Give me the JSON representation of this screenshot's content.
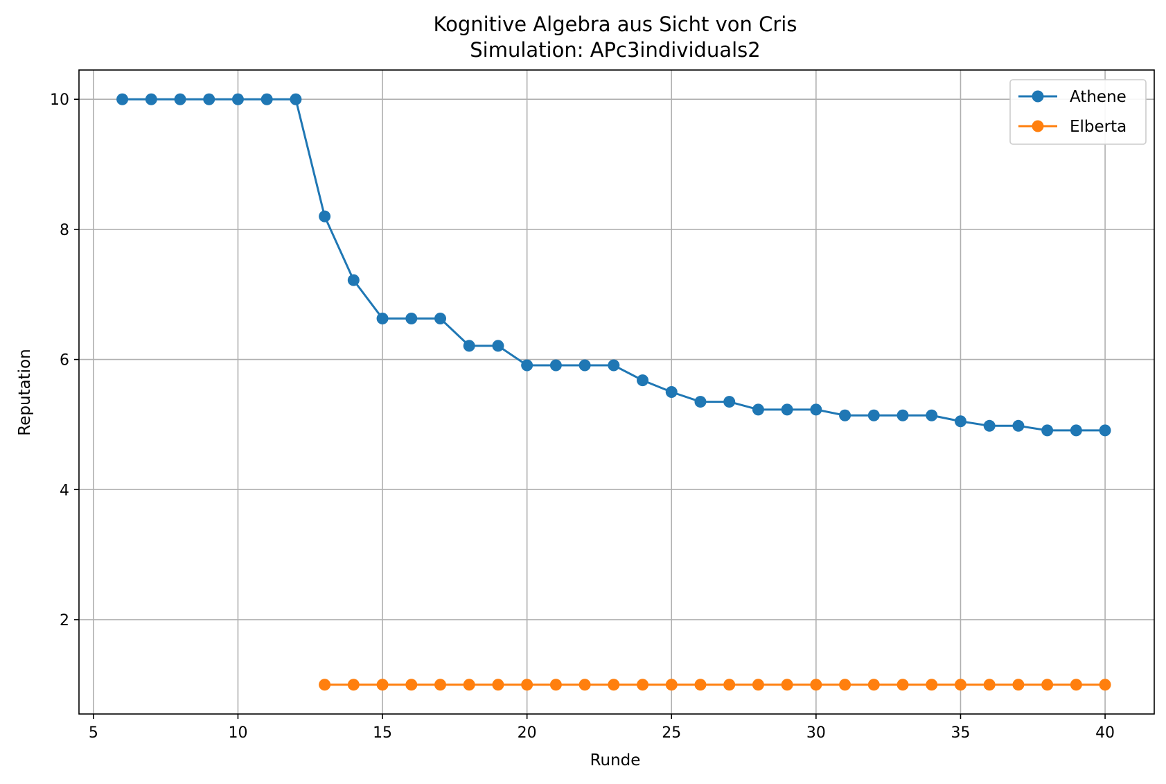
{
  "chart_data": {
    "type": "line",
    "title": "Kognitive Algebra aus Sicht von Cris",
    "subtitle": "Simulation: APc3individuals2",
    "xlabel": "Runde",
    "ylabel": "Reputation",
    "xlim": [
      4.5,
      41.7
    ],
    "ylim": [
      0.55,
      10.45
    ],
    "xticks": [
      5,
      10,
      15,
      20,
      25,
      30,
      35,
      40
    ],
    "yticks": [
      2,
      4,
      6,
      8,
      10
    ],
    "xtick_labels": [
      "5",
      "10",
      "15",
      "20",
      "25",
      "30",
      "35",
      "40"
    ],
    "ytick_labels": [
      "2",
      "4",
      "6",
      "8",
      "10"
    ],
    "grid": true,
    "legend_position": "top-right",
    "series": [
      {
        "name": "Athene",
        "color": "#1f77b4",
        "marker": "circle",
        "x": [
          6,
          7,
          8,
          9,
          10,
          11,
          12,
          13,
          14,
          15,
          16,
          17,
          18,
          19,
          20,
          21,
          22,
          23,
          24,
          25,
          26,
          27,
          28,
          29,
          30,
          31,
          32,
          33,
          34,
          35,
          36,
          37,
          38,
          39,
          40
        ],
        "y": [
          10,
          10,
          10,
          10,
          10,
          10,
          10,
          8.2,
          7.22,
          6.63,
          6.63,
          6.63,
          6.21,
          6.21,
          5.91,
          5.91,
          5.91,
          5.91,
          5.68,
          5.5,
          5.35,
          5.35,
          5.23,
          5.23,
          5.23,
          5.14,
          5.14,
          5.14,
          5.14,
          5.05,
          4.98,
          4.98,
          4.91,
          4.91,
          4.91
        ]
      },
      {
        "name": "Elberta",
        "color": "#ff7f0e",
        "marker": "circle",
        "x": [
          13,
          14,
          15,
          16,
          17,
          18,
          19,
          20,
          21,
          22,
          23,
          24,
          25,
          26,
          27,
          28,
          29,
          30,
          31,
          32,
          33,
          34,
          35,
          36,
          37,
          38,
          39,
          40
        ],
        "y": [
          1,
          1,
          1,
          1,
          1,
          1,
          1,
          1,
          1,
          1,
          1,
          1,
          1,
          1,
          1,
          1,
          1,
          1,
          1,
          1,
          1,
          1,
          1,
          1,
          1,
          1,
          1,
          1
        ]
      }
    ]
  }
}
